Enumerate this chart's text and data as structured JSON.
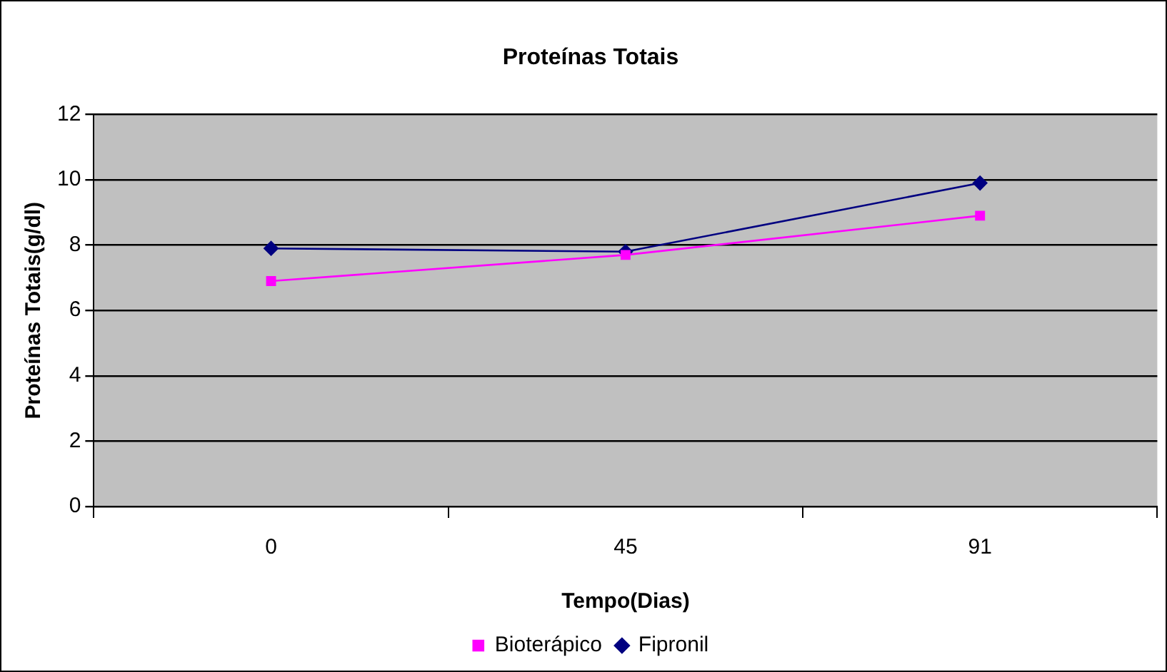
{
  "chart_data": {
    "type": "line",
    "title": "Proteínas Totais",
    "xlabel": "Tempo(Dias)",
    "ylabel": "Proteínas Totais(g/dl)",
    "categories": [
      "0",
      "45",
      "91"
    ],
    "series": [
      {
        "name": "Fipronil",
        "color": "#000080",
        "values": [
          7.9,
          7.8,
          9.9
        ],
        "marker": "diamond"
      },
      {
        "name": "Bioterápico",
        "color": "#ff00ff",
        "values": [
          6.9,
          7.7,
          8.9
        ],
        "marker": "square"
      }
    ],
    "ylim": [
      0,
      12
    ],
    "yticks": [
      0,
      2,
      4,
      6,
      8,
      10,
      12
    ],
    "grid": "y",
    "legend": "bottom"
  }
}
